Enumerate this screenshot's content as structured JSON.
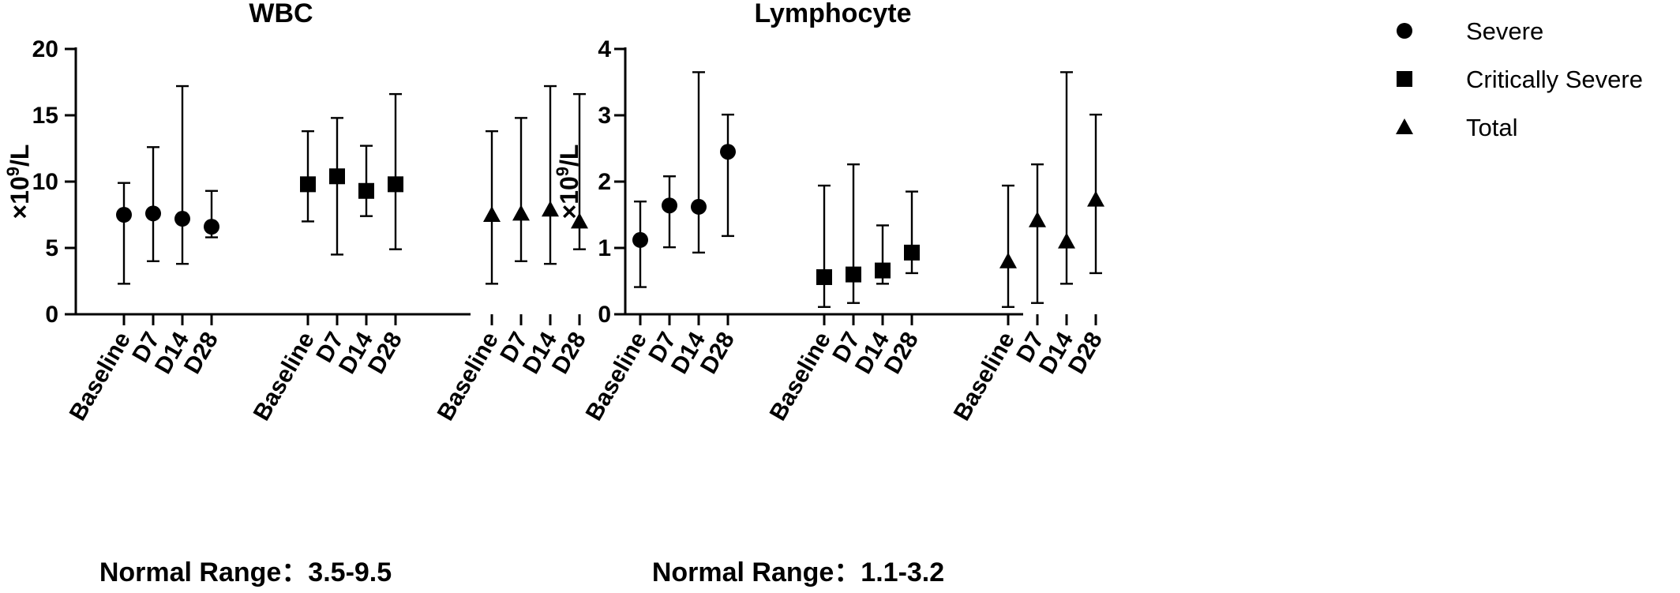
{
  "legend": {
    "severe": "Severe",
    "critically_severe": "Critically Severe",
    "total": "Total"
  },
  "chart_data": [
    {
      "type": "scatter",
      "title": "WBC",
      "ylabel_prefix": "×10",
      "ylabel_sup": "9",
      "ylabel_suffix": "/L",
      "note": "Normal Range：3.5-9.5",
      "ylim": [
        0,
        20
      ],
      "yticks": [
        0,
        5,
        10,
        15,
        20
      ],
      "categories": [
        "Baseline",
        "D7",
        "D14",
        "D28"
      ],
      "grid": false,
      "series": [
        {
          "name": "Severe",
          "marker": "circle",
          "values": [
            7.5,
            7.6,
            7.2,
            6.6
          ],
          "lower": [
            2.3,
            4.0,
            3.8,
            5.8
          ],
          "upper": [
            9.9,
            12.6,
            17.2,
            9.3
          ]
        },
        {
          "name": "Critically Severe",
          "marker": "square",
          "values": [
            9.8,
            10.4,
            9.3,
            9.8
          ],
          "lower": [
            7.0,
            4.5,
            7.4,
            4.9
          ],
          "upper": [
            13.8,
            14.8,
            12.7,
            16.6
          ]
        },
        {
          "name": "Total",
          "marker": "triangle",
          "values": [
            7.5,
            7.6,
            7.9,
            7.0
          ],
          "lower": [
            2.3,
            4.0,
            3.8,
            4.9
          ],
          "upper": [
            13.8,
            14.8,
            17.2,
            16.6
          ]
        }
      ]
    },
    {
      "type": "scatter",
      "title": "Lymphocyte",
      "ylabel_prefix": "×10",
      "ylabel_sup": "9",
      "ylabel_suffix": "/L",
      "note": "Normal Range：1.1-3.2",
      "ylim": [
        0,
        4
      ],
      "yticks": [
        0,
        1,
        2,
        3,
        4
      ],
      "categories": [
        "Baseline",
        "D7",
        "D14",
        "D28"
      ],
      "grid": false,
      "series": [
        {
          "name": "Severe",
          "marker": "circle",
          "values": [
            1.12,
            1.64,
            1.62,
            2.45
          ],
          "lower": [
            0.41,
            1.01,
            0.93,
            1.18
          ],
          "upper": [
            1.7,
            2.08,
            3.65,
            3.01
          ]
        },
        {
          "name": "Critically Severe",
          "marker": "square",
          "values": [
            0.56,
            0.6,
            0.66,
            0.93
          ],
          "lower": [
            0.11,
            0.17,
            0.46,
            0.62
          ],
          "upper": [
            1.94,
            2.26,
            1.34,
            1.85
          ]
        },
        {
          "name": "Total",
          "marker": "triangle",
          "values": [
            0.8,
            1.42,
            1.1,
            1.73
          ],
          "lower": [
            0.11,
            0.17,
            0.46,
            0.62
          ],
          "upper": [
            1.94,
            2.26,
            3.65,
            3.01
          ]
        }
      ]
    }
  ]
}
